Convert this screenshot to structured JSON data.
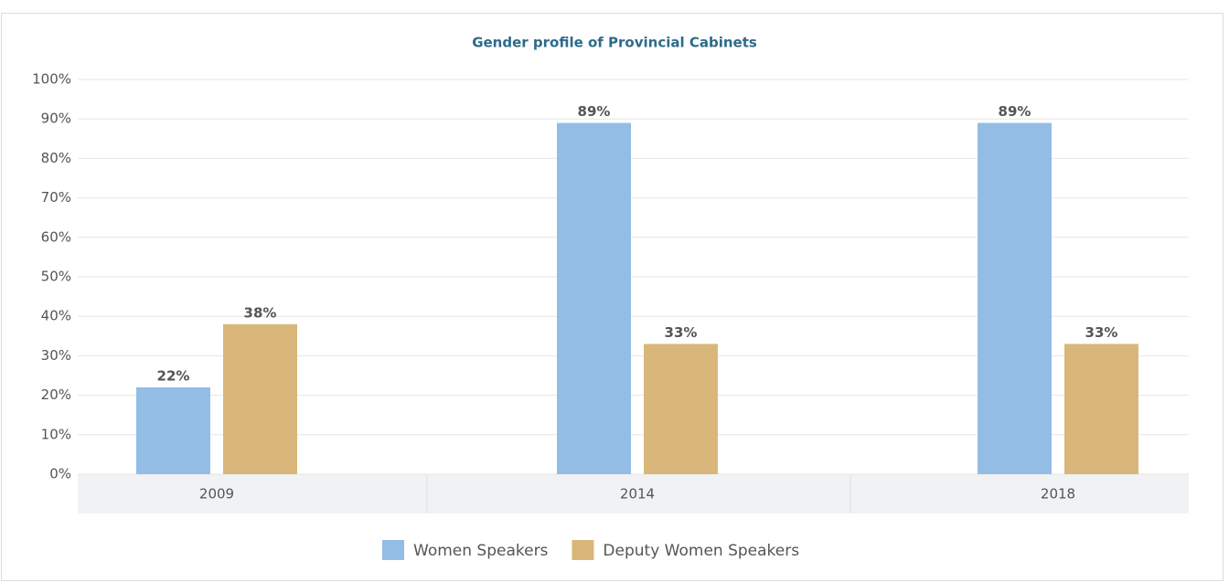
{
  "chart_data": {
    "type": "bar",
    "title": "Gender profile of Provincial Cabinets",
    "categories": [
      "2009",
      "2014",
      "2018"
    ],
    "series": [
      {
        "name": "Women Speakers",
        "color": "#94bde6",
        "values": [
          22,
          89,
          89
        ],
        "value_labels": [
          "22%",
          "89%",
          "89%"
        ]
      },
      {
        "name": "Deputy Women Speakers",
        "color": "#d9b77a",
        "values": [
          38,
          33,
          33
        ],
        "value_labels": [
          "38%",
          "33%",
          "33%"
        ]
      }
    ],
    "ylim": [
      0,
      100
    ],
    "yticks": [
      {
        "value": 0,
        "label": "0%"
      },
      {
        "value": 10,
        "label": "10%"
      },
      {
        "value": 20,
        "label": "20%"
      },
      {
        "value": 30,
        "label": "30%"
      },
      {
        "value": 40,
        "label": "40%"
      },
      {
        "value": 50,
        "label": "50%"
      },
      {
        "value": 60,
        "label": "60%"
      },
      {
        "value": 70,
        "label": "70%"
      },
      {
        "value": 80,
        "label": "80%"
      },
      {
        "value": 90,
        "label": "90%"
      },
      {
        "value": 100,
        "label": "100%"
      }
    ],
    "grid": true,
    "legend": "bottom"
  }
}
